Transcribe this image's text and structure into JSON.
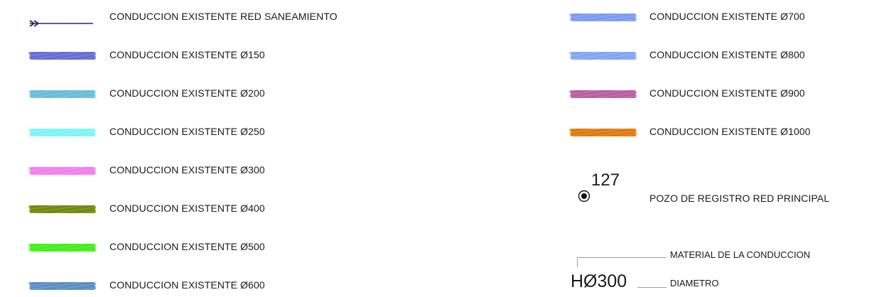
{
  "left_items": [
    {
      "kind": "arrow",
      "label": "CONDUCCION EXISTENTE RED SANEAMIENTO",
      "color": "#1f2a6b"
    },
    {
      "kind": "swatch",
      "label": "CONDUCCION EXISTENTE Ø150",
      "color": "#6b6bd8"
    },
    {
      "kind": "swatch",
      "label": "CONDUCCION EXISTENTE Ø200",
      "color": "#6cbcd8"
    },
    {
      "kind": "swatch",
      "label": "CONDUCCION EXISTENTE Ø250",
      "color": "#7ff5f7"
    },
    {
      "kind": "swatch",
      "label": "CONDUCCION EXISTENTE Ø300",
      "color": "#f57ef0"
    },
    {
      "kind": "swatch",
      "label": "CONDUCCION EXISTENTE Ø400",
      "color": "#6f8c10"
    },
    {
      "kind": "swatch",
      "label": "CONDUCCION EXISTENTE Ø500",
      "color": "#44ef1c"
    },
    {
      "kind": "swatch",
      "label": "CONDUCCION EXISTENTE Ø600",
      "color": "#5f8ec0"
    }
  ],
  "right_items": [
    {
      "kind": "swatch",
      "label": "CONDUCCION EXISTENTE Ø700",
      "color": "#7b9cf3"
    },
    {
      "kind": "swatch",
      "label": "CONDUCCION EXISTENTE Ø800",
      "color": "#82a7f2"
    },
    {
      "kind": "swatch",
      "label": "CONDUCCION EXISTENTE Ø900",
      "color": "#b85fa2"
    },
    {
      "kind": "swatch",
      "label": "CONDUCCION EXISTENTE Ø1000",
      "color": "#e07a10"
    }
  ],
  "manhole": {
    "number": "127",
    "label": "POZO DE REGISTRO RED PRINCIPAL"
  },
  "pipe_code": {
    "code": "HØ300",
    "material_label": "MATERIAL DE LA CONDUCCION",
    "diameter_label": "DIAMETRO"
  }
}
